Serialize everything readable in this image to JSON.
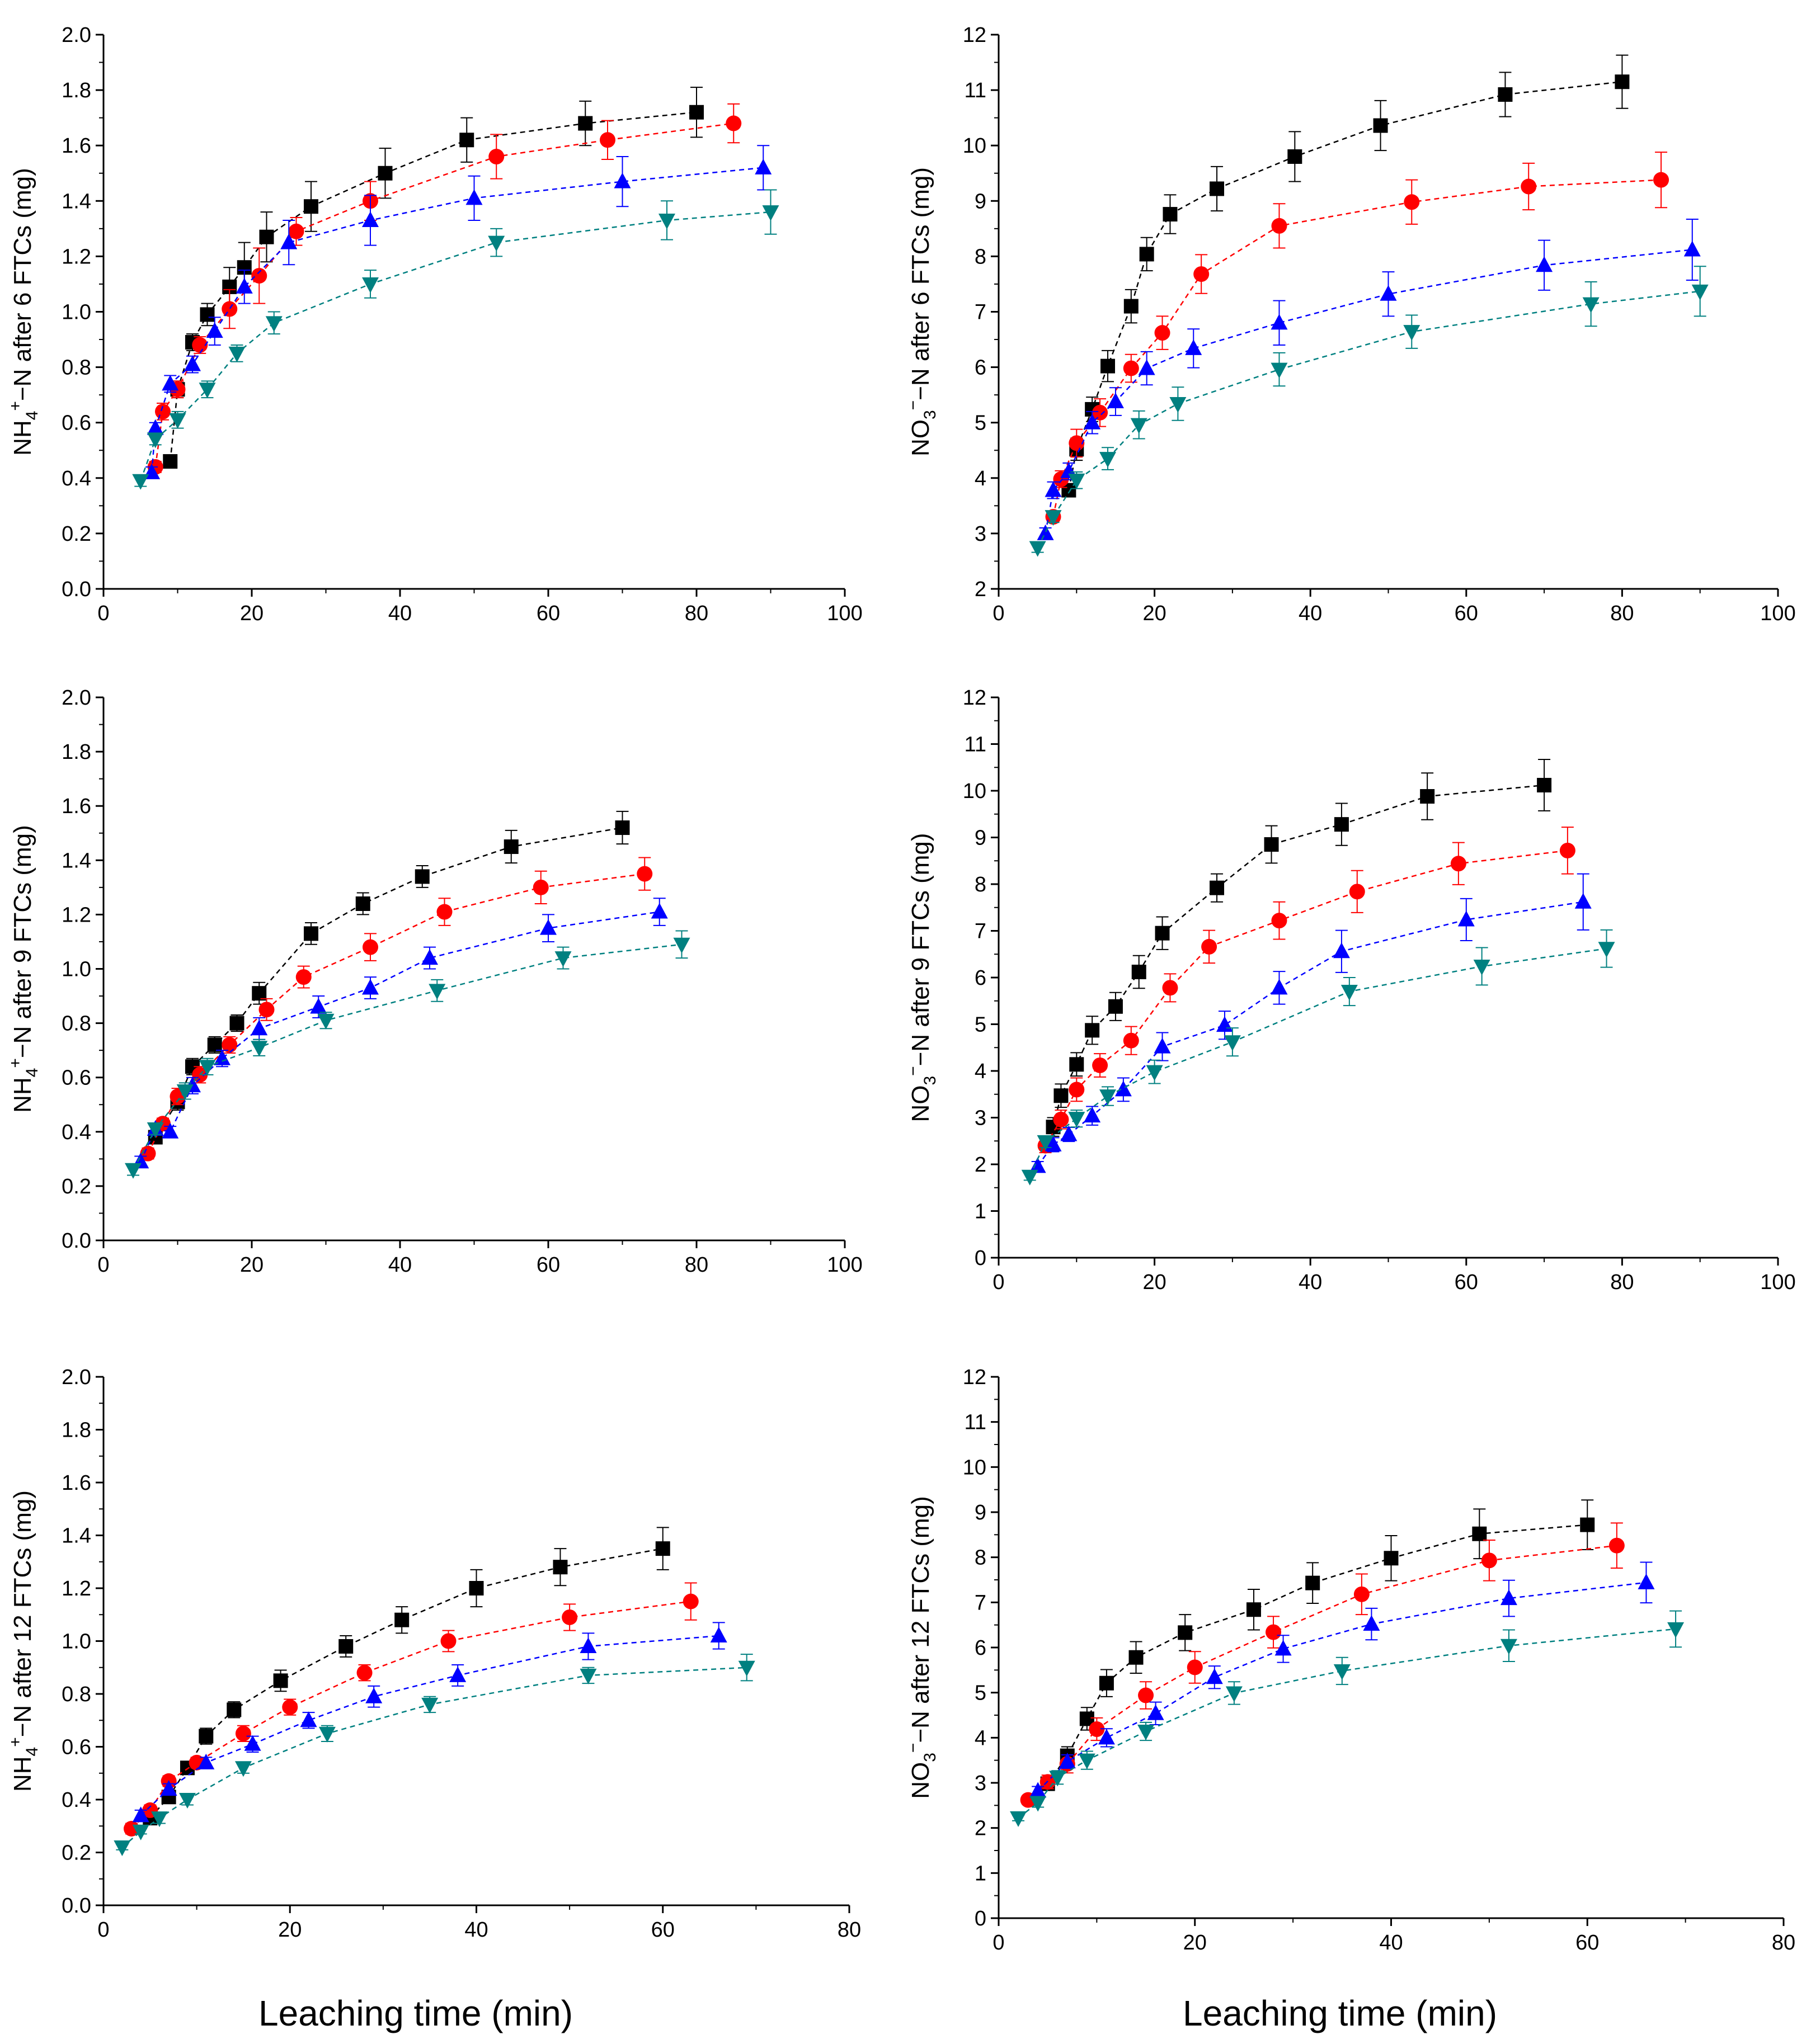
{
  "figure": {
    "xlabel": "Leaching time (min)"
  },
  "series_colors": [
    "#000000",
    "#ff0000",
    "#0000ff",
    "#008080"
  ],
  "series_markers": [
    "square",
    "circle",
    "triangle-up",
    "triangle-down"
  ],
  "chart_data": [
    {
      "type": "scatter",
      "ylabel": {
        "species": "NH",
        "sub": "4",
        "sup": "+",
        "rest": "−N after 6 FTCs (mg)"
      },
      "xlim": [
        0,
        100
      ],
      "ylim": [
        0,
        2.0
      ],
      "xticks": [
        "0",
        "20",
        "40",
        "60",
        "80",
        "100"
      ],
      "yticks": [
        "0.0",
        "0.2",
        "0.4",
        "0.6",
        "0.8",
        "1.0",
        "1.2",
        "1.4",
        "1.6",
        "1.8",
        "2.0"
      ],
      "series": [
        {
          "x": [
            9,
            10,
            12,
            14,
            17,
            19,
            22,
            28,
            38,
            49,
            65,
            80
          ],
          "y": [
            0.46,
            0.72,
            0.89,
            0.99,
            1.09,
            1.16,
            1.27,
            1.38,
            1.5,
            1.62,
            1.68,
            1.72
          ],
          "err": [
            0.02,
            0.03,
            0.03,
            0.04,
            0.07,
            0.09,
            0.09,
            0.09,
            0.09,
            0.08,
            0.08,
            0.09
          ]
        },
        {
          "x": [
            7,
            8,
            10,
            13,
            17,
            21,
            26,
            36,
            53,
            68,
            85
          ],
          "y": [
            0.44,
            0.64,
            0.72,
            0.88,
            1.01,
            1.13,
            1.29,
            1.4,
            1.56,
            1.62,
            1.68
          ],
          "err": [
            0.02,
            0.03,
            0.03,
            0.03,
            0.07,
            0.1,
            0.05,
            0.07,
            0.08,
            0.07,
            0.07
          ]
        },
        {
          "x": [
            6.5,
            7,
            9,
            12,
            15,
            19,
            25,
            36,
            50,
            70,
            89
          ],
          "y": [
            0.42,
            0.58,
            0.74,
            0.81,
            0.93,
            1.09,
            1.25,
            1.33,
            1.41,
            1.47,
            1.52
          ],
          "err": [
            0.02,
            0.02,
            0.03,
            0.03,
            0.05,
            0.06,
            0.08,
            0.09,
            0.08,
            0.09,
            0.08
          ]
        },
        {
          "x": [
            5,
            7,
            10,
            14,
            18,
            23,
            36,
            53,
            76,
            90
          ],
          "y": [
            0.39,
            0.54,
            0.61,
            0.72,
            0.85,
            0.96,
            1.1,
            1.25,
            1.33,
            1.36
          ],
          "err": [
            0.02,
            0.02,
            0.03,
            0.03,
            0.03,
            0.04,
            0.05,
            0.05,
            0.07,
            0.08
          ]
        }
      ]
    },
    {
      "type": "scatter",
      "ylabel": {
        "species": "NO",
        "sub": "3",
        "sup": "−",
        "rest": "−N after 6 FTCs (mg)"
      },
      "xlim": [
        0,
        100
      ],
      "ylim": [
        2,
        12
      ],
      "xticks": [
        "0",
        "20",
        "40",
        "60",
        "80",
        "100"
      ],
      "yticks": [
        "2",
        "3",
        "4",
        "5",
        "6",
        "7",
        "8",
        "9",
        "10",
        "11",
        "12"
      ],
      "series": [
        {
          "x": [
            9,
            10,
            12,
            14,
            17,
            19,
            22,
            28,
            38,
            49,
            65,
            80
          ],
          "y": [
            3.78,
            4.52,
            5.24,
            6.02,
            7.1,
            8.04,
            8.76,
            9.22,
            9.8,
            10.36,
            10.92,
            11.15
          ],
          "err": [
            0.1,
            0.2,
            0.22,
            0.28,
            0.3,
            0.3,
            0.35,
            0.4,
            0.45,
            0.45,
            0.4,
            0.48
          ]
        },
        {
          "x": [
            7,
            8,
            10,
            13,
            17,
            21,
            26,
            36,
            53,
            68,
            85
          ],
          "y": [
            3.3,
            3.98,
            4.63,
            5.18,
            5.98,
            6.62,
            7.68,
            8.55,
            8.98,
            9.26,
            9.38
          ],
          "err": [
            0.1,
            0.15,
            0.25,
            0.25,
            0.25,
            0.3,
            0.35,
            0.4,
            0.4,
            0.42,
            0.5
          ]
        },
        {
          "x": [
            6,
            7,
            9,
            12,
            15,
            19,
            25,
            36,
            50,
            70,
            89
          ],
          "y": [
            3.0,
            3.78,
            4.12,
            5.0,
            5.38,
            5.98,
            6.34,
            6.8,
            7.32,
            7.84,
            8.12
          ],
          "err": [
            0.1,
            0.15,
            0.15,
            0.2,
            0.25,
            0.3,
            0.35,
            0.4,
            0.4,
            0.45,
            0.55
          ]
        },
        {
          "x": [
            5,
            7,
            10,
            14,
            18,
            23,
            36,
            53,
            76,
            90
          ],
          "y": [
            2.74,
            3.3,
            3.96,
            4.35,
            4.96,
            5.34,
            5.96,
            6.64,
            7.14,
            7.37
          ],
          "err": [
            0.08,
            0.1,
            0.15,
            0.2,
            0.25,
            0.3,
            0.3,
            0.3,
            0.4,
            0.45
          ]
        }
      ]
    },
    {
      "type": "scatter",
      "ylabel": {
        "species": "NH",
        "sub": "4",
        "sup": "+",
        "rest": "−N after 9 FTCs (mg)"
      },
      "xlim": [
        0,
        100
      ],
      "ylim": [
        0,
        2.0
      ],
      "xticks": [
        "0",
        "20",
        "40",
        "60",
        "80",
        "100"
      ],
      "yticks": [
        "0.0",
        "0.2",
        "0.4",
        "0.6",
        "0.8",
        "1.0",
        "1.2",
        "1.4",
        "1.6",
        "1.8",
        "2.0"
      ],
      "series": [
        {
          "x": [
            7,
            10,
            12,
            15,
            18,
            21,
            28,
            35,
            43,
            55,
            70
          ],
          "y": [
            0.38,
            0.51,
            0.64,
            0.72,
            0.8,
            0.91,
            1.13,
            1.24,
            1.34,
            1.45,
            1.52
          ],
          "err": [
            0.02,
            0.03,
            0.03,
            0.03,
            0.03,
            0.04,
            0.04,
            0.04,
            0.04,
            0.06,
            0.06
          ]
        },
        {
          "x": [
            6,
            8,
            10,
            13,
            17,
            22,
            27,
            36,
            46,
            59,
            73
          ],
          "y": [
            0.32,
            0.43,
            0.53,
            0.61,
            0.72,
            0.85,
            0.97,
            1.08,
            1.21,
            1.3,
            1.35
          ],
          "err": [
            0.02,
            0.02,
            0.03,
            0.03,
            0.03,
            0.04,
            0.04,
            0.05,
            0.05,
            0.06,
            0.06
          ]
        },
        {
          "x": [
            5,
            7,
            9,
            12,
            16,
            21,
            29,
            36,
            44,
            60,
            75
          ],
          "y": [
            0.29,
            0.41,
            0.4,
            0.57,
            0.67,
            0.78,
            0.86,
            0.93,
            1.04,
            1.15,
            1.21
          ],
          "err": [
            0.02,
            0.02,
            0.02,
            0.03,
            0.03,
            0.04,
            0.04,
            0.04,
            0.04,
            0.05,
            0.05
          ]
        },
        {
          "x": [
            4,
            7,
            11,
            14,
            21,
            30,
            45,
            62,
            78
          ],
          "y": [
            0.26,
            0.41,
            0.55,
            0.64,
            0.71,
            0.81,
            0.92,
            1.04,
            1.09
          ],
          "err": [
            0.02,
            0.02,
            0.03,
            0.03,
            0.03,
            0.03,
            0.04,
            0.04,
            0.05
          ]
        }
      ]
    },
    {
      "type": "scatter",
      "ylabel": {
        "species": "NO",
        "sub": "3",
        "sup": "−",
        "rest": "−N after 9 FTCs (mg)"
      },
      "xlim": [
        0,
        100
      ],
      "ylim": [
        0,
        12
      ],
      "xticks": [
        "0",
        "20",
        "40",
        "60",
        "80",
        "100"
      ],
      "yticks": [
        "0",
        "1",
        "2",
        "3",
        "4",
        "5",
        "6",
        "7",
        "8",
        "9",
        "10",
        "11",
        "12"
      ],
      "series": [
        {
          "x": [
            7,
            8,
            10,
            12,
            15,
            18,
            21,
            28,
            35,
            44,
            55,
            70
          ],
          "y": [
            2.8,
            3.47,
            4.14,
            4.87,
            5.38,
            6.12,
            6.95,
            7.92,
            8.85,
            9.28,
            9.88,
            10.12
          ],
          "err": [
            0.2,
            0.25,
            0.25,
            0.3,
            0.3,
            0.35,
            0.35,
            0.3,
            0.4,
            0.45,
            0.5,
            0.55
          ]
        },
        {
          "x": [
            6,
            8,
            10,
            13,
            17,
            22,
            27,
            36,
            46,
            59,
            73
          ],
          "y": [
            2.4,
            2.96,
            3.6,
            4.12,
            4.65,
            5.78,
            6.66,
            7.22,
            7.84,
            8.44,
            8.72
          ],
          "err": [
            0.15,
            0.2,
            0.25,
            0.25,
            0.3,
            0.3,
            0.35,
            0.4,
            0.45,
            0.45,
            0.5
          ]
        },
        {
          "x": [
            5,
            7,
            9,
            12,
            16,
            21,
            29,
            36,
            44,
            60,
            75
          ],
          "y": [
            1.96,
            2.42,
            2.64,
            3.04,
            3.6,
            4.52,
            4.98,
            5.78,
            6.56,
            7.24,
            7.62
          ],
          "err": [
            0.1,
            0.15,
            0.15,
            0.2,
            0.25,
            0.3,
            0.3,
            0.35,
            0.45,
            0.45,
            0.6
          ]
        },
        {
          "x": [
            4,
            6,
            10,
            14,
            20,
            30,
            45,
            62,
            78
          ],
          "y": [
            1.74,
            2.48,
            2.98,
            3.46,
            3.98,
            4.62,
            5.7,
            6.24,
            6.62
          ],
          "err": [
            0.08,
            0.12,
            0.18,
            0.2,
            0.25,
            0.3,
            0.3,
            0.4,
            0.4
          ]
        }
      ]
    },
    {
      "type": "scatter",
      "ylabel": {
        "species": "NH",
        "sub": "4",
        "sup": "+",
        "rest": "−N after 12 FTCs (mg)"
      },
      "xlim": [
        0,
        80
      ],
      "ylim": [
        0,
        2.0
      ],
      "xticks": [
        "0",
        "20",
        "40",
        "60",
        "80"
      ],
      "yticks": [
        "0.0",
        "0.2",
        "0.4",
        "0.6",
        "0.8",
        "1.0",
        "1.2",
        "1.4",
        "1.6",
        "1.8",
        "2.0"
      ],
      "series": [
        {
          "x": [
            5,
            7,
            9,
            11,
            14,
            19,
            26,
            32,
            40,
            49,
            60
          ],
          "y": [
            0.33,
            0.41,
            0.52,
            0.64,
            0.74,
            0.85,
            0.98,
            1.08,
            1.2,
            1.28,
            1.35
          ],
          "err": [
            0.02,
            0.02,
            0.02,
            0.03,
            0.03,
            0.04,
            0.04,
            0.05,
            0.07,
            0.07,
            0.08
          ]
        },
        {
          "x": [
            3,
            5,
            7,
            10,
            15,
            20,
            28,
            37,
            50,
            63
          ],
          "y": [
            0.29,
            0.36,
            0.47,
            0.54,
            0.65,
            0.75,
            0.88,
            1.0,
            1.09,
            1.15
          ],
          "err": [
            0.02,
            0.02,
            0.02,
            0.02,
            0.03,
            0.03,
            0.03,
            0.04,
            0.05,
            0.07
          ]
        },
        {
          "x": [
            4,
            7,
            11,
            16,
            22,
            29,
            38,
            52,
            66
          ],
          "y": [
            0.34,
            0.44,
            0.54,
            0.61,
            0.7,
            0.79,
            0.87,
            0.98,
            1.02
          ],
          "err": [
            0.02,
            0.02,
            0.02,
            0.03,
            0.03,
            0.04,
            0.04,
            0.05,
            0.05
          ]
        },
        {
          "x": [
            2,
            4,
            6,
            9,
            15,
            24,
            35,
            52,
            69
          ],
          "y": [
            0.22,
            0.28,
            0.33,
            0.4,
            0.52,
            0.65,
            0.76,
            0.87,
            0.9
          ],
          "err": [
            0.01,
            0.01,
            0.02,
            0.02,
            0.02,
            0.03,
            0.03,
            0.03,
            0.05
          ]
        }
      ]
    },
    {
      "type": "scatter",
      "ylabel": {
        "species": "NO",
        "sub": "3",
        "sup": "−",
        "rest": "−N after 12 FTCs (mg)"
      },
      "xlim": [
        0,
        80
      ],
      "ylim": [
        0,
        12
      ],
      "xticks": [
        "0",
        "20",
        "40",
        "60",
        "80"
      ],
      "yticks": [
        "0",
        "1",
        "2",
        "3",
        "4",
        "5",
        "6",
        "7",
        "8",
        "9",
        "10",
        "11",
        "12"
      ],
      "series": [
        {
          "x": [
            5,
            7,
            9,
            11,
            14,
            19,
            26,
            32,
            40,
            49,
            60
          ],
          "y": [
            2.98,
            3.6,
            4.42,
            5.21,
            5.78,
            6.33,
            6.84,
            7.43,
            7.98,
            8.52,
            8.72
          ],
          "err": [
            0.12,
            0.2,
            0.25,
            0.3,
            0.35,
            0.4,
            0.45,
            0.45,
            0.5,
            0.55,
            0.55
          ]
        },
        {
          "x": [
            3,
            5,
            7,
            10,
            15,
            20,
            28,
            37,
            50,
            63
          ],
          "y": [
            2.62,
            3.02,
            3.42,
            4.19,
            4.94,
            5.56,
            6.34,
            7.18,
            7.93,
            8.26
          ],
          "err": [
            0.1,
            0.15,
            0.2,
            0.25,
            0.3,
            0.35,
            0.35,
            0.45,
            0.45,
            0.5
          ]
        },
        {
          "x": [
            4,
            7,
            11,
            16,
            22,
            29,
            38,
            52,
            66
          ],
          "y": [
            2.82,
            3.47,
            4.0,
            4.54,
            5.34,
            5.97,
            6.52,
            7.09,
            7.44
          ],
          "err": [
            0.1,
            0.15,
            0.2,
            0.25,
            0.25,
            0.3,
            0.35,
            0.4,
            0.45
          ]
        },
        {
          "x": [
            2,
            4,
            6,
            9,
            15,
            24,
            35,
            52,
            69
          ],
          "y": [
            2.22,
            2.56,
            3.12,
            3.5,
            4.14,
            4.99,
            5.48,
            6.04,
            6.41
          ],
          "err": [
            0.06,
            0.1,
            0.15,
            0.2,
            0.2,
            0.25,
            0.3,
            0.35,
            0.4
          ]
        }
      ]
    }
  ]
}
